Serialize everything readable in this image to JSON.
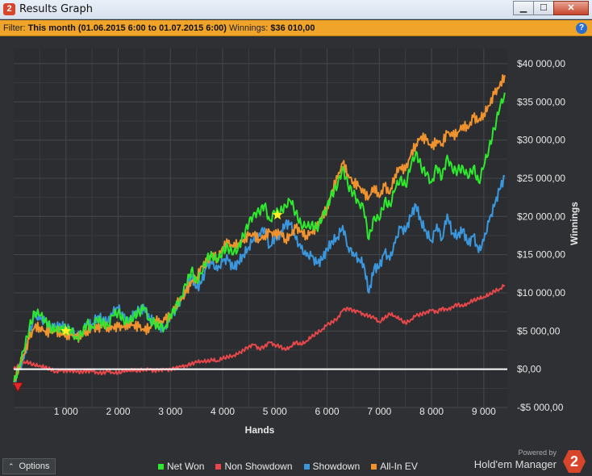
{
  "window": {
    "title": "Results Graph",
    "app_icon": "hem-app-icon"
  },
  "title_buttons": {
    "minimize": "▁",
    "maximize": "☐",
    "close": "✕"
  },
  "filter": {
    "prefix": "Filter:",
    "value": "This month (01.06.2015 6:00 to 01.07.2015 6:00)",
    "winnings_label": "Winnings:",
    "winnings_value": "$36 010,00",
    "help_icon": "?"
  },
  "bottom": {
    "options_label": "Options",
    "powered_by": "Powered by",
    "brand": "Hold'em Manager",
    "brand_logo": "2"
  },
  "colors": {
    "net_won": "#2ee82e",
    "non_showdown": "#e6474a",
    "showdown": "#3a96dd",
    "all_in_ev": "#f0932f",
    "zero_line": "#ffffff",
    "grid": "#44474b"
  },
  "chart_data": {
    "type": "line",
    "xlabel": "Hands",
    "ylabel": "Winnings",
    "xlim": [
      0,
      9450
    ],
    "ylim": [
      -5000,
      42000
    ],
    "x_ticks": [
      1000,
      2000,
      3000,
      4000,
      5000,
      6000,
      7000,
      8000,
      9000
    ],
    "x_tick_labels": [
      "1 000",
      "2 000",
      "3 000",
      "4 000",
      "5 000",
      "6 000",
      "7 000",
      "8 000",
      "9 000"
    ],
    "y_ticks": [
      -5000,
      0,
      5000,
      10000,
      15000,
      20000,
      25000,
      30000,
      35000,
      40000
    ],
    "y_tick_labels": [
      "-$5 000,00",
      "$0,00",
      "$5 000,00",
      "$10 000,00",
      "$15 000,00",
      "$20 000,00",
      "$25 000,00",
      "$30 000,00",
      "$35 000,00",
      "$40 000,00"
    ],
    "grid": true,
    "legend": "bottom",
    "x": [
      0,
      100,
      200,
      300,
      400,
      500,
      600,
      700,
      800,
      900,
      1000,
      1100,
      1200,
      1300,
      1400,
      1500,
      1600,
      1700,
      1800,
      1900,
      2000,
      2100,
      2200,
      2300,
      2400,
      2500,
      2600,
      2700,
      2800,
      2900,
      3000,
      3100,
      3200,
      3300,
      3400,
      3500,
      3600,
      3700,
      3800,
      3900,
      4000,
      4100,
      4200,
      4300,
      4400,
      4500,
      4600,
      4700,
      4800,
      4900,
      5000,
      5100,
      5200,
      5300,
      5400,
      5500,
      5600,
      5700,
      5800,
      5900,
      6000,
      6100,
      6200,
      6300,
      6400,
      6500,
      6600,
      6700,
      6800,
      6900,
      7000,
      7100,
      7200,
      7300,
      7400,
      7500,
      7600,
      7700,
      7800,
      7900,
      8000,
      8100,
      8200,
      8300,
      8400,
      8500,
      8600,
      8700,
      8800,
      8900,
      9000,
      9100,
      9200,
      9300,
      9400
    ],
    "series": [
      {
        "name": "Net Won",
        "values": [
          -2000,
          500,
          2500,
          5500,
          7500,
          7000,
          6500,
          5500,
          5000,
          5500,
          5200,
          5000,
          4200,
          4500,
          6000,
          5500,
          6500,
          6000,
          5800,
          7000,
          7500,
          6500,
          6000,
          7000,
          7500,
          8000,
          6500,
          6000,
          5500,
          5500,
          7000,
          8000,
          9500,
          11000,
          13000,
          11500,
          12500,
          14500,
          15000,
          14000,
          15500,
          16000,
          15000,
          16000,
          17500,
          19000,
          20500,
          20500,
          21500,
          19500,
          20500,
          20500,
          21500,
          22000,
          20500,
          19000,
          18500,
          19000,
          18500,
          19500,
          21500,
          23000,
          24000,
          26500,
          24000,
          23000,
          22000,
          21000,
          17000,
          20000,
          19500,
          22000,
          21500,
          23500,
          25000,
          24000,
          26500,
          28500,
          26500,
          25500,
          24500,
          26500,
          25000,
          28000,
          26000,
          26000,
          26500,
          25000,
          26500,
          24500,
          26500,
          29000,
          31500,
          34000,
          36200
        ]
      },
      {
        "name": "Non Showdown",
        "values": [
          0,
          500,
          1000,
          800,
          500,
          500,
          200,
          0,
          -300,
          -200,
          -200,
          -100,
          -400,
          -300,
          -200,
          -300,
          -400,
          -500,
          -300,
          -400,
          -500,
          -300,
          -100,
          -200,
          -200,
          0,
          -100,
          -200,
          0,
          -100,
          0,
          200,
          300,
          500,
          700,
          900,
          1100,
          1000,
          1200,
          1100,
          1400,
          1600,
          1800,
          2000,
          2500,
          3000,
          3200,
          2700,
          3000,
          3500,
          3200,
          3000,
          2500,
          3000,
          3500,
          3200,
          3700,
          4200,
          4700,
          5200,
          5800,
          6200,
          6700,
          7700,
          8000,
          7700,
          7500,
          7200,
          7000,
          6700,
          6200,
          6700,
          7200,
          7000,
          6500,
          6000,
          6500,
          7000,
          7200,
          7500,
          7700,
          7500,
          8000,
          7700,
          8200,
          8500,
          8200,
          8700,
          9000,
          9200,
          9500,
          9700,
          10200,
          10500,
          11000
        ]
      },
      {
        "name": "Showdown",
        "values": [
          -2000,
          0,
          1500,
          4500,
          7000,
          6500,
          6200,
          5500,
          5500,
          5700,
          5400,
          5100,
          4600,
          4800,
          6200,
          5800,
          6900,
          6500,
          6100,
          7400,
          8000,
          6800,
          6100,
          7200,
          7700,
          8000,
          6600,
          6200,
          5500,
          5600,
          7000,
          7800,
          9200,
          10500,
          12300,
          10600,
          11400,
          13500,
          13800,
          12900,
          14100,
          14400,
          13200,
          14000,
          15000,
          16000,
          17300,
          17800,
          18500,
          16000,
          17300,
          17500,
          19000,
          19000,
          17000,
          15800,
          14800,
          14800,
          13800,
          14300,
          15700,
          16800,
          17300,
          18800,
          16000,
          15300,
          14500,
          13800,
          10000,
          13300,
          13300,
          15300,
          14300,
          16500,
          18500,
          18000,
          20000,
          21500,
          19300,
          18000,
          16800,
          19000,
          17000,
          20300,
          17800,
          17500,
          18300,
          16300,
          17500,
          15300,
          16800,
          19300,
          21300,
          23500,
          25200
        ]
      },
      {
        "name": "All-In EV",
        "values": [
          -2000,
          500,
          2000,
          4000,
          5500,
          5500,
          5000,
          4800,
          5000,
          4800,
          4500,
          4500,
          4000,
          4500,
          5000,
          5500,
          5200,
          5800,
          5500,
          5500,
          5500,
          5500,
          6000,
          5800,
          5500,
          5000,
          5500,
          6500,
          6000,
          6500,
          7000,
          8500,
          9000,
          10000,
          11500,
          12000,
          13500,
          14000,
          15000,
          14500,
          16000,
          16500,
          16000,
          16500,
          17000,
          17500,
          17500,
          17000,
          17500,
          18000,
          17500,
          18000,
          17000,
          17500,
          18500,
          18000,
          17500,
          18000,
          18500,
          20000,
          21000,
          23500,
          25000,
          27000,
          25500,
          24500,
          24000,
          23000,
          22500,
          24000,
          22500,
          24000,
          23000,
          25500,
          26500,
          26000,
          28000,
          29500,
          30500,
          30000,
          29000,
          30000,
          29500,
          31000,
          30500,
          31000,
          32000,
          31500,
          33000,
          32500,
          33500,
          34500,
          36000,
          37000,
          38500
        ]
      }
    ],
    "markers": [
      {
        "type": "star",
        "x": 1000,
        "y": 5000,
        "color": "#ffee22"
      },
      {
        "type": "star",
        "x": 5050,
        "y": 20200,
        "color": "#ffee22"
      },
      {
        "type": "triangle-down",
        "x": 80,
        "y": -2300,
        "color": "#e0282b"
      }
    ]
  }
}
